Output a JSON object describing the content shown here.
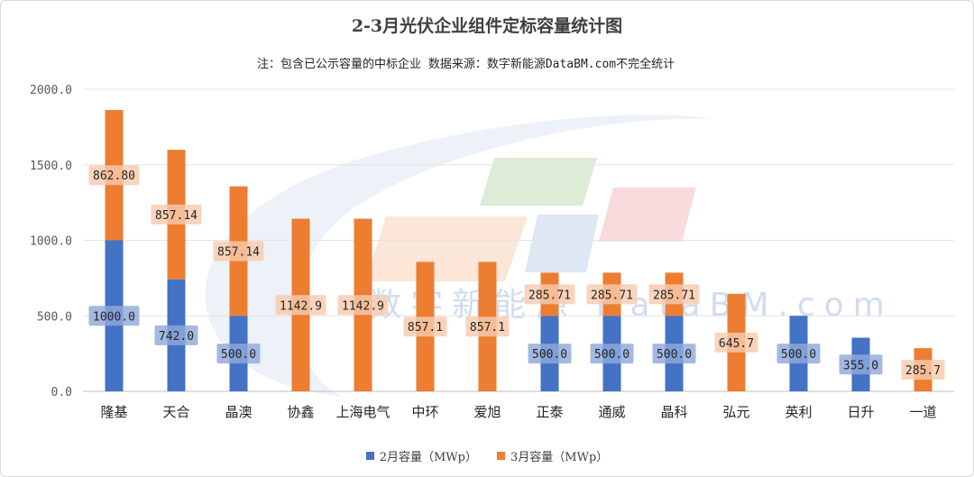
{
  "chart_data": {
    "type": "bar",
    "stacked": true,
    "title": "2-3月光伏企业组件定标容量统计图",
    "subtitle": "注：包含已公示容量的中标企业 数据来源：数字新能源DataBM.com不完全统计",
    "categories": [
      "隆基",
      "天合",
      "晶澳",
      "协鑫",
      "上海电气",
      "中环",
      "爱旭",
      "正泰",
      "通威",
      "晶科",
      "弘元",
      "英利",
      "日升",
      "一道"
    ],
    "series": [
      {
        "name": "2月容量（MWp）",
        "color": "#4472C4",
        "values": [
          1000.0,
          742.0,
          500.0,
          0,
          0,
          0,
          0,
          500.0,
          500.0,
          500.0,
          0,
          500.0,
          355.0,
          0
        ],
        "labels": [
          "1000.0",
          "742.0",
          "500.0",
          "",
          "",
          "",
          "",
          "500.0",
          "500.0",
          "500.0",
          "",
          "500.0",
          "355.0",
          ""
        ]
      },
      {
        "name": "3月容量（MWp）",
        "color": "#ED7D31",
        "values": [
          862.8,
          857.14,
          857.14,
          1142.9,
          1142.9,
          857.1,
          857.1,
          285.71,
          285.71,
          285.71,
          645.7,
          0,
          0,
          285.7
        ],
        "labels": [
          "862.80",
          "857.14",
          "857.14",
          "1142.9",
          "1142.9",
          "857.1",
          "857.1",
          "285.71",
          "285.71",
          "285.71",
          "645.7",
          "",
          "",
          "285.7"
        ]
      }
    ],
    "ylim": [
      0,
      2000
    ],
    "yticks": [
      "0.0",
      "500.0",
      "1000.0",
      "1500.0",
      "2000.0"
    ],
    "grid": true,
    "legend_position": "bottom",
    "watermark": "数字新能源 DataBM.com"
  }
}
